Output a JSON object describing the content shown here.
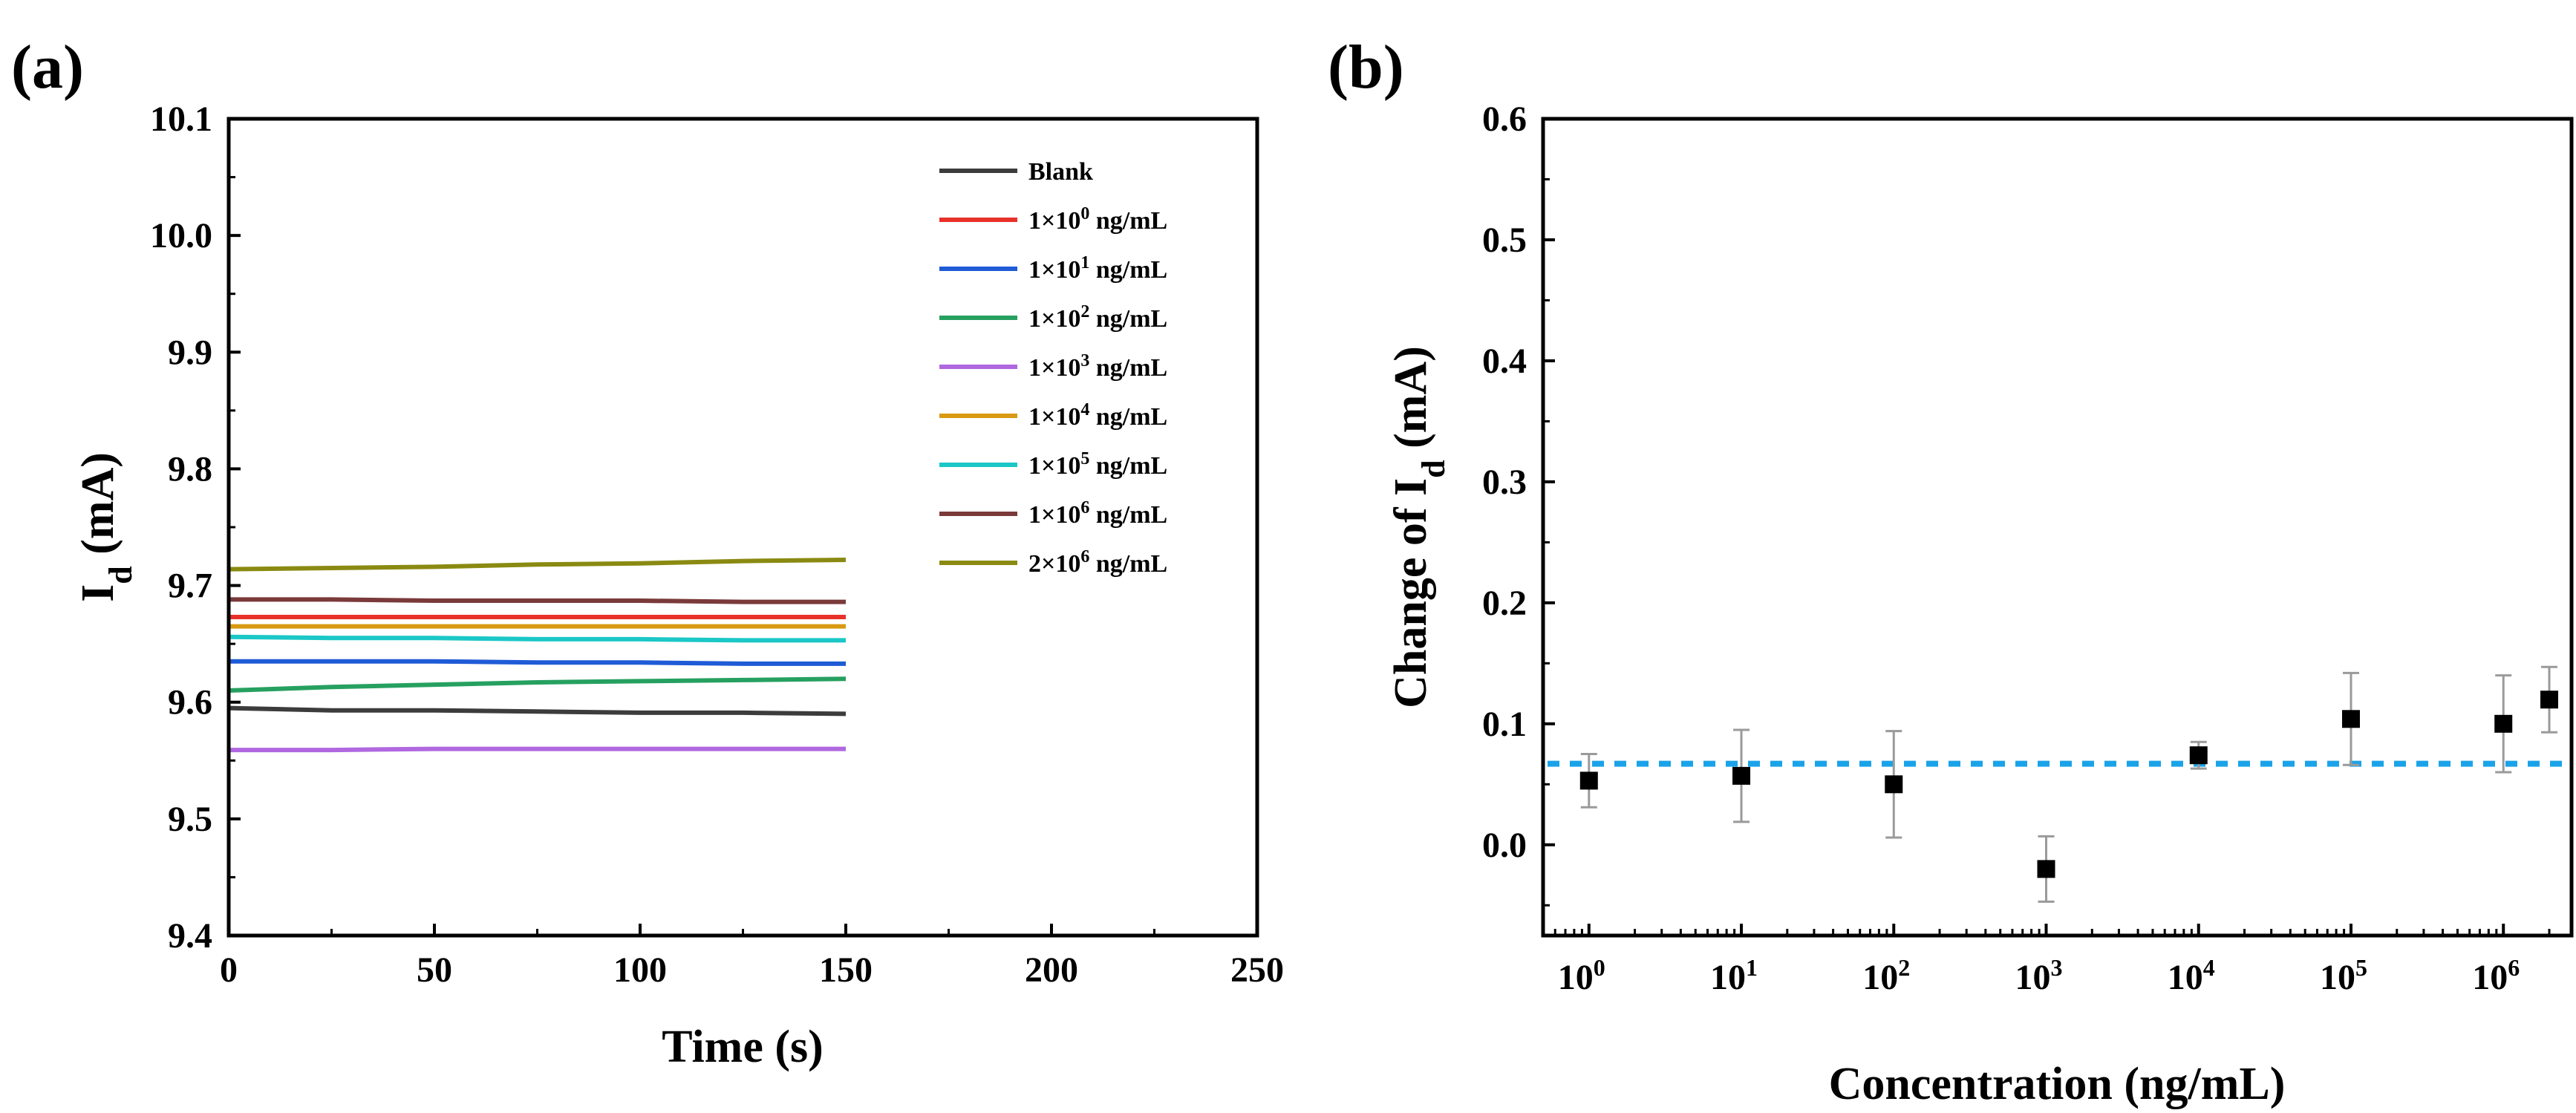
{
  "chart_data": [
    {
      "panel_label": "(a)",
      "type": "line",
      "xlabel": "Time (s)",
      "ylabel": {
        "main": "I",
        "sub": "d",
        "rest": " (mA)"
      },
      "xlim": [
        0,
        250
      ],
      "ylim": [
        9.4,
        10.1
      ],
      "xticks": [
        0,
        50,
        100,
        150,
        200,
        250
      ],
      "xtick_labels": [
        "0",
        "50",
        "100",
        "150",
        "200",
        "250"
      ],
      "yticks": [
        9.4,
        9.5,
        9.6,
        9.7,
        9.8,
        9.9,
        10.0,
        10.1
      ],
      "ytick_labels": [
        "9.4",
        "9.5",
        "9.6",
        "9.7",
        "9.8",
        "9.9",
        "10.0",
        "10.1"
      ],
      "legend_position": "top-right",
      "series": [
        {
          "name": "Blank",
          "label": {
            "base": "Blank",
            "exp": "",
            "unit": ""
          },
          "color": "#3c3c3c",
          "x": [
            0,
            25,
            50,
            75,
            100,
            125,
            150
          ],
          "y": [
            9.595,
            9.593,
            9.593,
            9.592,
            9.591,
            9.591,
            9.59
          ]
        },
        {
          "name": "1×10^0 ng/mL",
          "label": {
            "base": "1×10",
            "exp": "0",
            "unit": " ng/mL"
          },
          "color": "#e8312a",
          "x": [
            0,
            25,
            50,
            75,
            100,
            125,
            150
          ],
          "y": [
            9.673,
            9.673,
            9.673,
            9.673,
            9.673,
            9.673,
            9.673
          ]
        },
        {
          "name": "1×10^1 ng/mL",
          "label": {
            "base": "1×10",
            "exp": "1",
            "unit": " ng/mL"
          },
          "color": "#1f5bd6",
          "x": [
            0,
            25,
            50,
            75,
            100,
            125,
            150
          ],
          "y": [
            9.635,
            9.635,
            9.635,
            9.634,
            9.634,
            9.633,
            9.633
          ]
        },
        {
          "name": "1×10^2 ng/mL",
          "label": {
            "base": "1×10",
            "exp": "2",
            "unit": " ng/mL"
          },
          "color": "#26a060",
          "x": [
            0,
            25,
            50,
            75,
            100,
            125,
            150
          ],
          "y": [
            9.61,
            9.613,
            9.615,
            9.617,
            9.618,
            9.619,
            9.62
          ]
        },
        {
          "name": "1×10^3 ng/mL",
          "label": {
            "base": "1×10",
            "exp": "3",
            "unit": " ng/mL"
          },
          "color": "#b068e0",
          "x": [
            0,
            25,
            50,
            75,
            100,
            125,
            150
          ],
          "y": [
            9.559,
            9.559,
            9.56,
            9.56,
            9.56,
            9.56,
            9.56
          ]
        },
        {
          "name": "1×10^4 ng/mL",
          "label": {
            "base": "1×10",
            "exp": "4",
            "unit": " ng/mL"
          },
          "color": "#d99a12",
          "x": [
            0,
            25,
            50,
            75,
            100,
            125,
            150
          ],
          "y": [
            9.665,
            9.665,
            9.665,
            9.665,
            9.665,
            9.665,
            9.665
          ]
        },
        {
          "name": "1×10^5 ng/mL",
          "label": {
            "base": "1×10",
            "exp": "5",
            "unit": " ng/mL"
          },
          "color": "#1bc7c7",
          "x": [
            0,
            25,
            50,
            75,
            100,
            125,
            150
          ],
          "y": [
            9.656,
            9.655,
            9.655,
            9.654,
            9.654,
            9.653,
            9.653
          ]
        },
        {
          "name": "1×10^6 ng/mL",
          "label": {
            "base": "1×10",
            "exp": "6",
            "unit": " ng/mL"
          },
          "color": "#7a3a3a",
          "x": [
            0,
            25,
            50,
            75,
            100,
            125,
            150
          ],
          "y": [
            9.688,
            9.688,
            9.687,
            9.687,
            9.687,
            9.686,
            9.686
          ]
        },
        {
          "name": "2×10^6 ng/mL",
          "label": {
            "base": "2×10",
            "exp": "6",
            "unit": " ng/mL"
          },
          "color": "#8a8a12",
          "x": [
            0,
            25,
            50,
            75,
            100,
            125,
            150
          ],
          "y": [
            9.714,
            9.715,
            9.716,
            9.718,
            9.719,
            9.721,
            9.722
          ]
        }
      ]
    },
    {
      "panel_label": "(b)",
      "type": "scatter",
      "xscale": "log",
      "xlabel": "Concentration (ng/mL)",
      "ylabel": {
        "main": "Change of I",
        "sub": "d",
        "rest": " (mA)"
      },
      "xlim": [
        0.5,
        2800000
      ],
      "ylim": [
        -0.075,
        0.6
      ],
      "yticks": [
        0.0,
        0.1,
        0.2,
        0.3,
        0.4,
        0.5,
        0.6
      ],
      "ytick_labels": [
        "0.0",
        "0.1",
        "0.2",
        "0.3",
        "0.4",
        "0.5",
        "0.6"
      ],
      "xtick_exponents": [
        0,
        1,
        2,
        3,
        4,
        5,
        6
      ],
      "xtick_base": "10",
      "reference_line": {
        "y": 0.067,
        "color": "#1aa3e8",
        "style": "dashed"
      },
      "marker_color": "#000000",
      "errorbar_color": "#9a9a9a",
      "points": [
        {
          "x": 1,
          "y": 0.053,
          "err": 0.022
        },
        {
          "x": 10,
          "y": 0.057,
          "err": 0.038
        },
        {
          "x": 100,
          "y": 0.05,
          "err": 0.044
        },
        {
          "x": 1000,
          "y": -0.02,
          "err": 0.027
        },
        {
          "x": 10000,
          "y": 0.074,
          "err": 0.011
        },
        {
          "x": 100000,
          "y": 0.104,
          "err": 0.038
        },
        {
          "x": 1000000,
          "y": 0.1,
          "err": 0.04
        },
        {
          "x": 2000000,
          "y": 0.12,
          "err": 0.027
        }
      ]
    }
  ]
}
